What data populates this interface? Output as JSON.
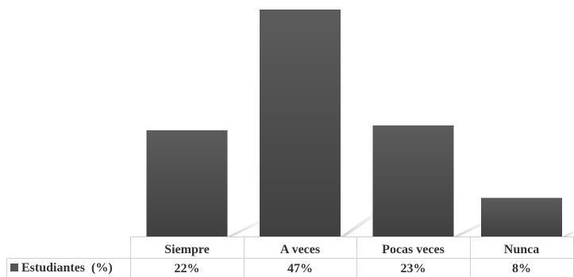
{
  "chart_data": {
    "type": "bar",
    "categories": [
      "Siempre",
      "A veces",
      "Pocas veces",
      "Nunca"
    ],
    "series": [
      {
        "name": "Estudiantes  (%)",
        "values": [
          22,
          47,
          23,
          8
        ],
        "value_labels": [
          "22%",
          "47%",
          "23%",
          "8%"
        ],
        "color": "#555555"
      }
    ],
    "ylim": [
      0,
      47
    ],
    "grid": false,
    "legend": "data-table-left"
  }
}
